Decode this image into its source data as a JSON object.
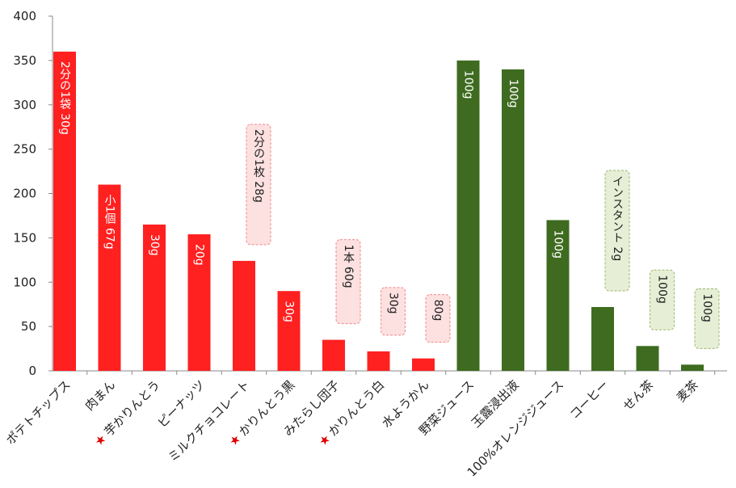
{
  "chart_data": {
    "type": "bar",
    "categories": [
      "ポテトチップス",
      "肉まん",
      "芋かりんとう",
      "ピーナッツ",
      "ミルクチョコレート",
      "かりんとう黒",
      "みたらし団子",
      "かりんとう白",
      "水ようかん",
      "野菜ジュース",
      "玉露浸出液",
      "100%オレンジジュース",
      "コーヒー",
      "せん茶",
      "麦茶"
    ],
    "values": [
      360,
      210,
      165,
      154,
      124,
      90,
      35,
      22,
      14,
      350,
      340,
      170,
      72,
      28,
      7
    ],
    "colors": [
      "#ff2020",
      "#ff2020",
      "#ff2020",
      "#ff2020",
      "#ff2020",
      "#ff2020",
      "#ff2020",
      "#ff2020",
      "#ff2020",
      "#3e6b1f",
      "#3e6b1f",
      "#3e6b1f",
      "#3e6b1f",
      "#3e6b1f",
      "#3e6b1f"
    ],
    "star_marked": [
      false,
      false,
      true,
      false,
      false,
      true,
      false,
      true,
      false,
      false,
      false,
      false,
      false,
      false,
      false
    ],
    "annotations": [
      "2分の1袋 30g",
      "小1個 67g",
      "30g",
      "20g",
      "2分の1枚 28g",
      "30g",
      "1本 60g",
      "30g",
      "80g",
      "100g",
      "100g",
      "100g",
      "インスタント 2g",
      "100g",
      "100g"
    ],
    "annotation_placement": [
      "inside",
      "inside",
      "inside",
      "inside",
      "callout",
      "inside",
      "callout",
      "callout",
      "callout",
      "inside",
      "inside",
      "inside",
      "callout",
      "callout",
      "callout"
    ],
    "ylim": [
      0,
      400
    ],
    "yticks": [
      0,
      50,
      100,
      150,
      200,
      250,
      300,
      350,
      400
    ]
  }
}
